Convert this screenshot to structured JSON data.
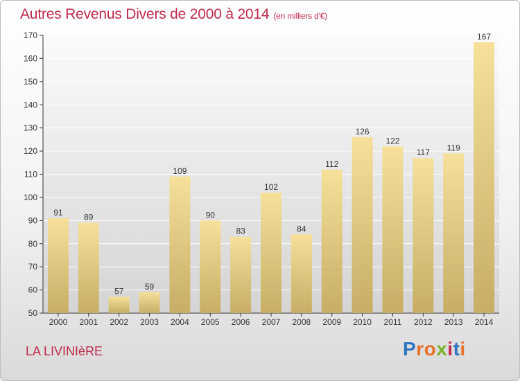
{
  "chart_data": {
    "type": "bar",
    "title": "Autres Revenus Divers de 2000 à 2014",
    "subtitle": "(en milliers d'€)",
    "categories": [
      "2000",
      "2001",
      "2002",
      "2003",
      "2004",
      "2005",
      "2006",
      "2007",
      "2008",
      "2009",
      "2010",
      "2011",
      "2012",
      "2013",
      "2014"
    ],
    "values": [
      91,
      89,
      57,
      59,
      109,
      90,
      83,
      102,
      84,
      112,
      126,
      122,
      117,
      119,
      167
    ],
    "ylim": [
      50,
      170
    ],
    "yticks": [
      50,
      60,
      70,
      80,
      90,
      100,
      110,
      120,
      130,
      140,
      150,
      160,
      170
    ],
    "grid": true,
    "bar_color": "#e6cc7c",
    "xlabel": "",
    "ylabel": ""
  },
  "commune": "LA LIVINIèRE",
  "logo": {
    "text": "Proxiti",
    "letter_colors": [
      "#2f74c0",
      "#e8702a",
      "#e8702a",
      "#7ab32e",
      "#c0294a",
      "#2f74c0",
      "#e8702a"
    ]
  },
  "colors": {
    "title": "#c0294a",
    "axis": "#333333",
    "grid": "#ffffff"
  }
}
